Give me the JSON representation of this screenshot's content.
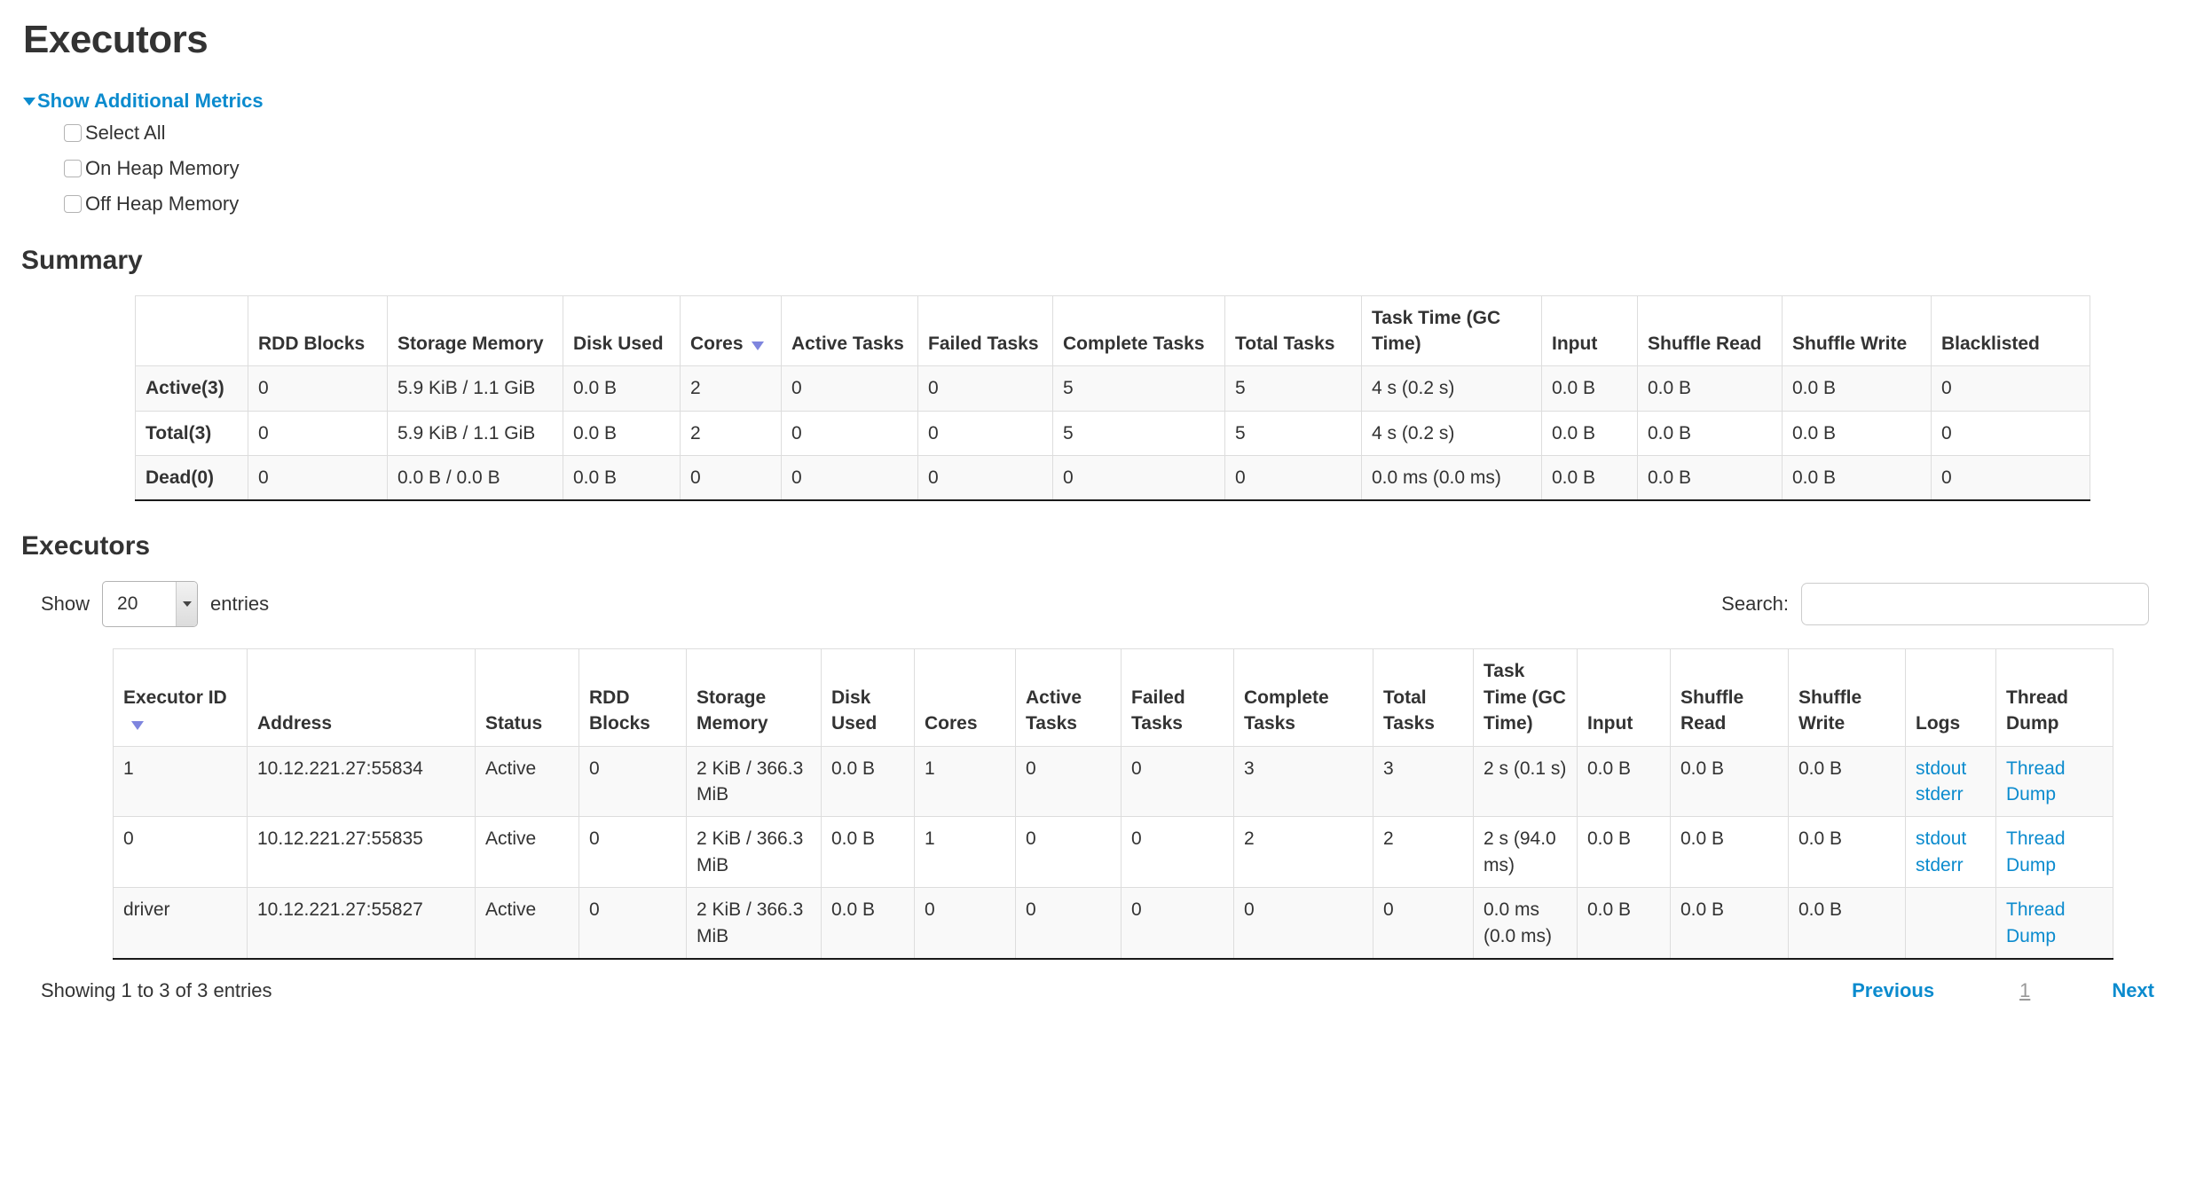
{
  "page": {
    "title": "Executors"
  },
  "metrics": {
    "toggle_label": "Show Additional Metrics",
    "items": [
      "Select All",
      "On Heap Memory",
      "Off Heap Memory"
    ]
  },
  "summary": {
    "heading": "Summary",
    "columns": [
      "",
      "RDD Blocks",
      "Storage Memory",
      "Disk Used",
      "Cores",
      "Active Tasks",
      "Failed Tasks",
      "Complete Tasks",
      "Total Tasks",
      "Task Time (GC Time)",
      "Input",
      "Shuffle Read",
      "Shuffle Write",
      "Blacklisted"
    ],
    "sorted_column_index": 4,
    "rows": [
      {
        "label": "Active(3)",
        "cells": [
          "0",
          "5.9 KiB / 1.1 GiB",
          "0.0 B",
          "2",
          "0",
          "0",
          "5",
          "5",
          "4 s (0.2 s)",
          "0.0 B",
          "0.0 B",
          "0.0 B",
          "0"
        ]
      },
      {
        "label": "Total(3)",
        "cells": [
          "0",
          "5.9 KiB / 1.1 GiB",
          "0.0 B",
          "2",
          "0",
          "0",
          "5",
          "5",
          "4 s (0.2 s)",
          "0.0 B",
          "0.0 B",
          "0.0 B",
          "0"
        ]
      },
      {
        "label": "Dead(0)",
        "cells": [
          "0",
          "0.0 B / 0.0 B",
          "0.0 B",
          "0",
          "0",
          "0",
          "0",
          "0",
          "0.0 ms (0.0 ms)",
          "0.0 B",
          "0.0 B",
          "0.0 B",
          "0"
        ]
      }
    ]
  },
  "executors": {
    "heading": "Executors",
    "show_label": "Show",
    "page_size": "20",
    "entries_label": "entries",
    "search_label": "Search:",
    "search_value": "",
    "columns": [
      "Executor ID",
      "Address",
      "Status",
      "RDD Blocks",
      "Storage Memory",
      "Disk Used",
      "Cores",
      "Active Tasks",
      "Failed Tasks",
      "Complete Tasks",
      "Total Tasks",
      "Task Time (GC Time)",
      "Input",
      "Shuffle Read",
      "Shuffle Write",
      "Logs",
      "Thread Dump"
    ],
    "sorted_column_index": 0,
    "rows": [
      {
        "cells": [
          "1",
          "10.12.221.27:55834",
          "Active",
          "0",
          "2 KiB / 366.3 MiB",
          "0.0 B",
          "1",
          "0",
          "0",
          "3",
          "3",
          "2 s (0.1 s)",
          "0.0 B",
          "0.0 B",
          "0.0 B"
        ],
        "logs": [
          "stdout",
          "stderr"
        ],
        "thread_dump": "Thread Dump"
      },
      {
        "cells": [
          "0",
          "10.12.221.27:55835",
          "Active",
          "0",
          "2 KiB / 366.3 MiB",
          "0.0 B",
          "1",
          "0",
          "0",
          "2",
          "2",
          "2 s (94.0 ms)",
          "0.0 B",
          "0.0 B",
          "0.0 B"
        ],
        "logs": [
          "stdout",
          "stderr"
        ],
        "thread_dump": "Thread Dump"
      },
      {
        "cells": [
          "driver",
          "10.12.221.27:55827",
          "Active",
          "0",
          "2 KiB / 366.3 MiB",
          "0.0 B",
          "0",
          "0",
          "0",
          "0",
          "0",
          "0.0 ms (0.0 ms)",
          "0.0 B",
          "0.0 B",
          "0.0 B"
        ],
        "logs": [],
        "thread_dump": "Thread Dump"
      }
    ],
    "footer": "Showing 1 to 3 of 3 entries",
    "pagination": {
      "previous": "Previous",
      "page": "1",
      "next": "Next"
    }
  },
  "colors": {
    "link_blue": "#0b8bce",
    "sort_arrow": "#7e85de",
    "row_stripe": "#f9f9f9"
  }
}
